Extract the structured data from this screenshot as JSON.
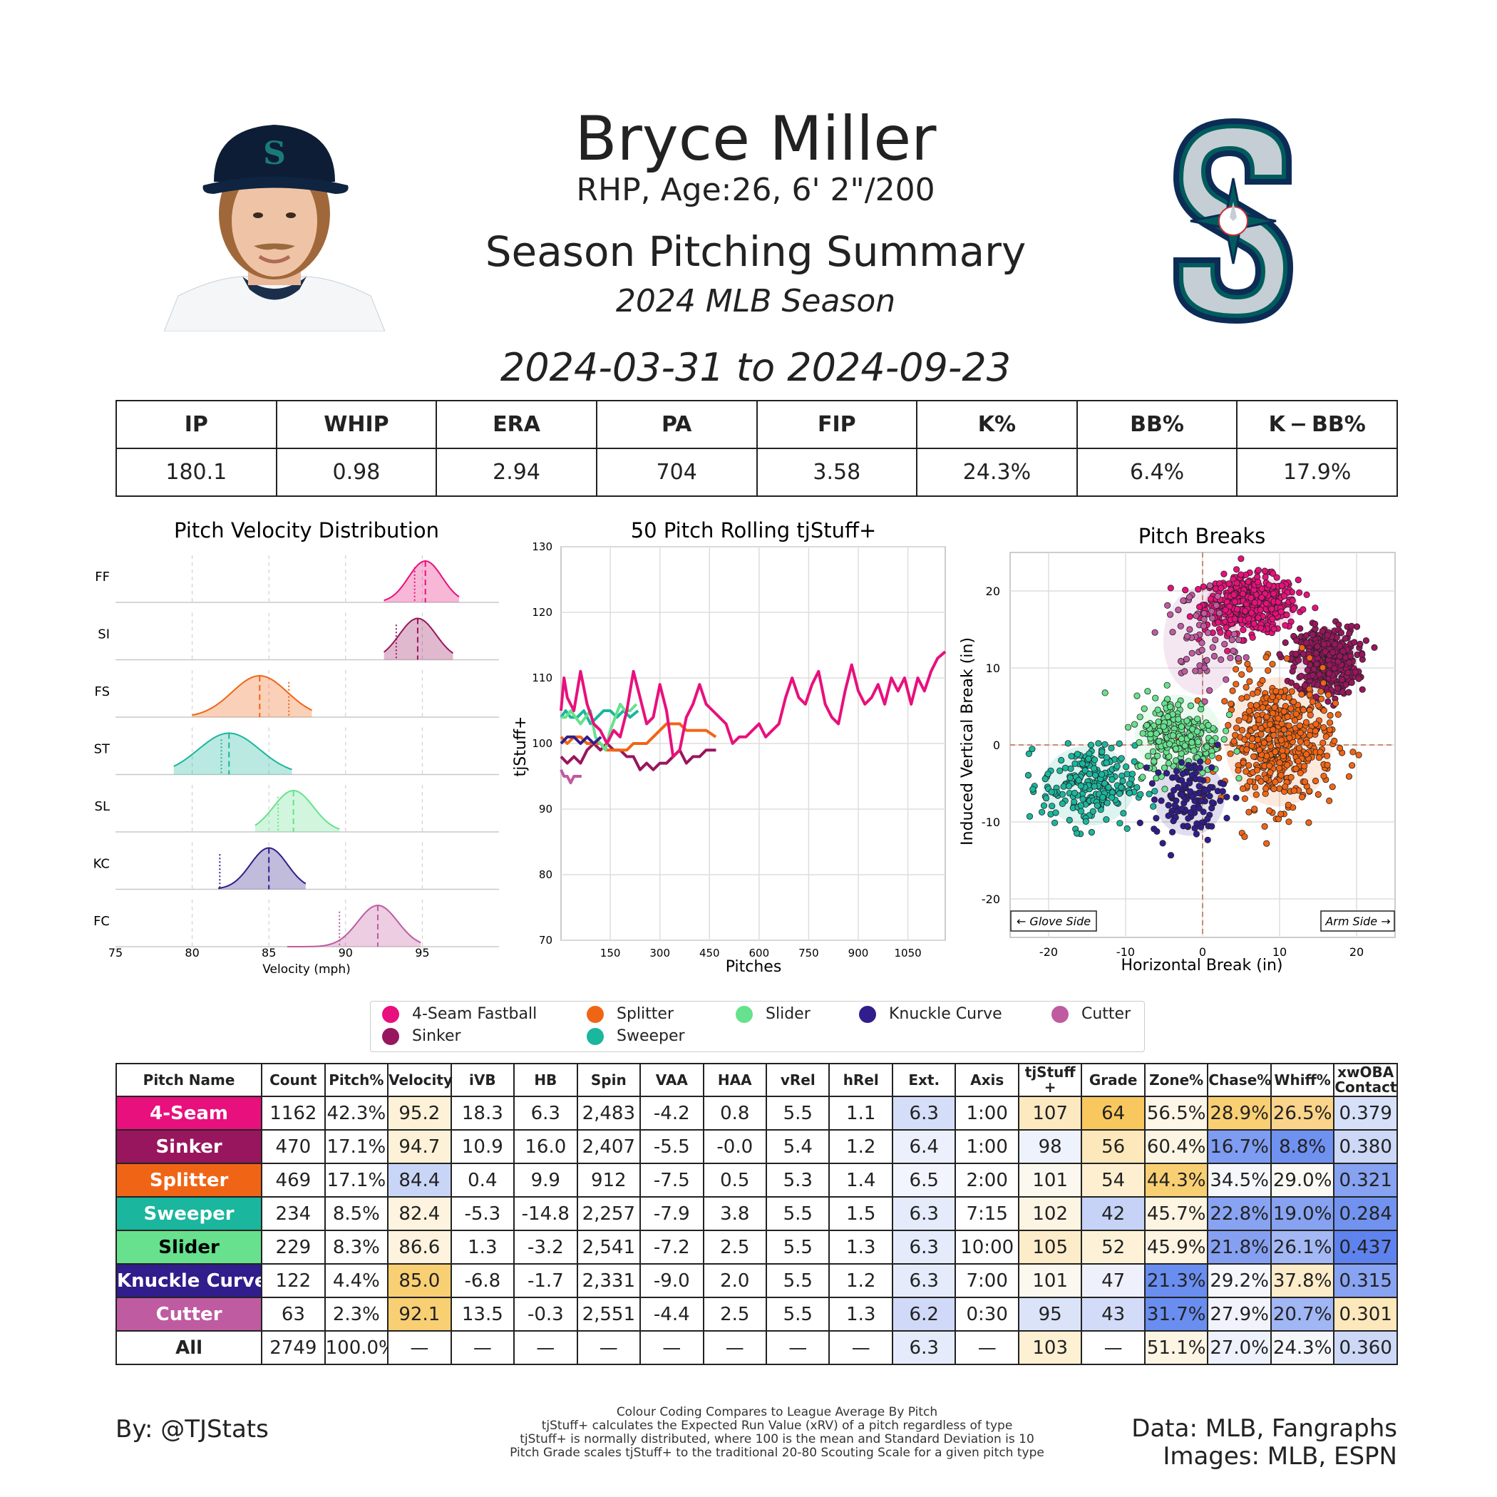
{
  "header": {
    "name": "Bryce Miller",
    "bio": "RHP, Age:26, 6' 2\"/200",
    "subtitle": "Season Pitching Summary",
    "season": "2024 MLB Season",
    "date_range": "2024-03-31 to 2024-09-23"
  },
  "summary": {
    "headers": [
      "IP",
      "WHIP",
      "ERA",
      "PA",
      "FIP",
      "K%",
      "BB%",
      "K − BB%"
    ],
    "values": [
      "180.1",
      "0.98",
      "2.94",
      "704",
      "3.58",
      "24.3%",
      "6.4%",
      "17.9%"
    ]
  },
  "colors": {
    "FF": "#e8107c",
    "SI": "#98165d",
    "FS": "#f06515",
    "ST": "#1ab69d",
    "SL": "#67e18d",
    "KC": "#311d8b",
    "FC": "#bf5ba0"
  },
  "chart_data": [
    {
      "type": "area",
      "title": "Pitch Velocity Distribution",
      "xlabel": "Velocity (mph)",
      "xlim": [
        75,
        100
      ],
      "xticks": [
        75,
        80,
        85,
        90,
        95
      ],
      "series": [
        {
          "name": "FF",
          "pitch": "4-Seam Fastball",
          "mean": 95.2,
          "sd": 1.1,
          "min": 92.5,
          "max": 97.4,
          "league": 94.5
        },
        {
          "name": "SI",
          "pitch": "Sinker",
          "mean": 94.7,
          "sd": 1.2,
          "min": 92.5,
          "max": 97.0,
          "league": 93.3
        },
        {
          "name": "FS",
          "pitch": "Splitter",
          "mean": 84.4,
          "sd": 1.8,
          "min": 80.0,
          "max": 87.8,
          "league": 86.3
        },
        {
          "name": "ST",
          "pitch": "Sweeper",
          "mean": 82.4,
          "sd": 2.0,
          "min": 78.8,
          "max": 86.5,
          "league": 81.9
        },
        {
          "name": "SL",
          "pitch": "Slider",
          "mean": 86.6,
          "sd": 1.3,
          "min": 84.1,
          "max": 89.6,
          "league": 85.6
        },
        {
          "name": "KC",
          "pitch": "Knuckle Curve",
          "mean": 85.0,
          "sd": 1.2,
          "min": 81.7,
          "max": 87.4,
          "league": 81.8
        },
        {
          "name": "FC",
          "pitch": "Cutter",
          "mean": 92.1,
          "sd": 1.3,
          "min": 86.2,
          "max": 94.9,
          "league": 89.6
        }
      ]
    },
    {
      "type": "line",
      "title": "50 Pitch Rolling tjStuff+",
      "xlabel": "Pitches",
      "ylabel": "tjStuff+",
      "xlim": [
        1,
        1163
      ],
      "ylim": [
        70,
        130
      ],
      "xticks": [
        150,
        300,
        450,
        600,
        750,
        900,
        1050
      ],
      "yticks": [
        70,
        80,
        90,
        100,
        110,
        120,
        130
      ],
      "series": [
        {
          "name": "FF",
          "x": [
            1,
            10,
            20,
            40,
            60,
            80,
            100,
            120,
            140,
            160,
            180,
            200,
            220,
            240,
            260,
            280,
            300,
            320,
            340,
            360,
            380,
            400,
            420,
            440,
            460,
            480,
            500,
            520,
            540,
            560,
            580,
            600,
            620,
            640,
            660,
            680,
            700,
            720,
            740,
            760,
            780,
            800,
            820,
            840,
            860,
            880,
            900,
            920,
            940,
            960,
            980,
            1000,
            1020,
            1040,
            1060,
            1080,
            1100,
            1120,
            1140,
            1163
          ],
          "y": [
            105,
            110,
            107,
            105,
            111,
            106,
            103,
            102,
            100,
            102,
            101,
            105,
            111,
            107,
            103,
            104,
            109,
            105,
            98,
            99,
            104,
            106,
            109,
            106,
            105,
            104,
            103,
            100,
            101,
            101,
            102,
            103,
            101,
            102,
            103,
            107,
            110,
            107,
            106,
            109,
            111,
            106,
            104,
            103,
            108,
            112,
            108,
            106,
            107,
            109,
            106,
            110,
            108,
            110,
            106,
            110,
            108,
            111,
            113,
            114
          ]
        },
        {
          "name": "SI",
          "x": [
            1,
            20,
            40,
            60,
            80,
            100,
            120,
            140,
            160,
            180,
            200,
            220,
            240,
            260,
            280,
            300,
            320,
            340,
            360,
            380,
            400,
            420,
            440,
            470
          ],
          "y": [
            98,
            97,
            98,
            97,
            99,
            100,
            99,
            100,
            99,
            99,
            98,
            98,
            96,
            97,
            96,
            97,
            97,
            98,
            99,
            97,
            98,
            98,
            99,
            99
          ]
        },
        {
          "name": "FS",
          "x": [
            1,
            20,
            40,
            60,
            80,
            100,
            120,
            140,
            160,
            180,
            200,
            220,
            240,
            260,
            280,
            300,
            320,
            340,
            360,
            380,
            400,
            420,
            440,
            469
          ],
          "y": [
            101,
            100,
            101,
            101,
            100,
            100,
            100,
            99,
            99,
            99,
            99,
            100,
            100,
            100,
            101,
            102,
            103,
            103,
            103,
            102,
            102,
            102,
            102,
            101
          ]
        },
        {
          "name": "ST",
          "x": [
            1,
            15,
            30,
            50,
            70,
            90,
            110,
            130,
            150,
            170,
            190,
            210,
            234
          ],
          "y": [
            104,
            105,
            104,
            104,
            105,
            103,
            104,
            105,
            105,
            104,
            105,
            104,
            105
          ]
        },
        {
          "name": "SL",
          "x": [
            1,
            15,
            30,
            45,
            60,
            75,
            90,
            105,
            120,
            135,
            150,
            165,
            180,
            195,
            210,
            229
          ],
          "y": [
            104,
            104,
            105,
            104,
            103,
            104,
            105,
            101,
            100,
            99,
            102,
            104,
            106,
            105,
            105,
            106
          ]
        },
        {
          "name": "KC",
          "x": [
            1,
            20,
            40,
            60,
            80,
            100,
            122
          ],
          "y": [
            100,
            101,
            101,
            100,
            101,
            100,
            101
          ]
        },
        {
          "name": "FC",
          "x": [
            1,
            10,
            20,
            30,
            40,
            50,
            63
          ],
          "y": [
            96,
            95,
            95,
            94,
            95,
            95,
            95
          ]
        }
      ]
    },
    {
      "type": "scatter",
      "title": "Pitch Breaks",
      "xlabel": "Horizontal Break (in)",
      "ylabel": "Induced Vertical Break (in)",
      "xlim": [
        -25,
        25
      ],
      "ylim": [
        -25,
        25
      ],
      "xticks": [
        -20,
        -10,
        0,
        10,
        20
      ],
      "yticks": [
        -20,
        -10,
        0,
        10,
        20
      ],
      "glove_side_label": "← Glove Side",
      "arm_side_label": "Arm Side →",
      "series": [
        {
          "name": "FF",
          "hb_mean": 6.3,
          "ivb_mean": 18.3,
          "hb_sd": 3.0,
          "ivb_sd": 1.8,
          "n": 1162
        },
        {
          "name": "SI",
          "hb_mean": 16.0,
          "ivb_mean": 10.9,
          "hb_sd": 2.0,
          "ivb_sd": 2.2,
          "n": 470
        },
        {
          "name": "FS",
          "hb_mean": 9.9,
          "ivb_mean": 0.4,
          "hb_sd": 3.5,
          "ivb_sd": 4.2,
          "n": 469
        },
        {
          "name": "ST",
          "hb_mean": -14.8,
          "ivb_mean": -5.3,
          "hb_sd": 3.0,
          "ivb_sd": 2.6,
          "n": 234
        },
        {
          "name": "SL",
          "hb_mean": -3.2,
          "ivb_mean": 1.3,
          "hb_sd": 2.8,
          "ivb_sd": 2.6,
          "n": 229
        },
        {
          "name": "KC",
          "hb_mean": -1.7,
          "ivb_mean": -6.8,
          "hb_sd": 2.3,
          "ivb_sd": 2.5,
          "n": 122
        },
        {
          "name": "FC",
          "hb_mean": -0.3,
          "ivb_mean": 13.5,
          "hb_sd": 2.4,
          "ivb_sd": 3.5,
          "n": 63
        }
      ]
    }
  ],
  "legend": [
    {
      "code": "FF",
      "label": "4-Seam Fastball"
    },
    {
      "code": "SI",
      "label": "Sinker"
    },
    {
      "code": "FS",
      "label": "Splitter"
    },
    {
      "code": "ST",
      "label": "Sweeper"
    },
    {
      "code": "SL",
      "label": "Slider"
    },
    {
      "code": "KC",
      "label": "Knuckle Curve"
    },
    {
      "code": "FC",
      "label": "Cutter"
    }
  ],
  "pitch_table": {
    "headers": [
      "Pitch Name",
      "Count",
      "Pitch%",
      "Velocity",
      "iVB",
      "HB",
      "Spin",
      "VAA",
      "HAA",
      "vRel",
      "hRel",
      "Ext.",
      "Axis",
      "tjStuff +",
      "Grade",
      "Zone%",
      "Chase%",
      "Whiff%",
      "xwOBA Contact"
    ],
    "rows": [
      {
        "name": "4-Seam",
        "code": "FF",
        "cells": [
          "1162",
          "42.3%",
          "95.2",
          "18.3",
          "6.3",
          "2,483",
          "-4.2",
          "0.8",
          "5.5",
          "1.1",
          "6.3",
          "1:00",
          "107",
          "64",
          "56.5%",
          "28.9%",
          "26.5%",
          "0.379"
        ]
      },
      {
        "name": "Sinker",
        "code": "SI",
        "cells": [
          "470",
          "17.1%",
          "94.7",
          "10.9",
          "16.0",
          "2,407",
          "-5.5",
          "-0.0",
          "5.4",
          "1.2",
          "6.4",
          "1:00",
          "98",
          "56",
          "60.4%",
          "16.7%",
          "8.8%",
          "0.380"
        ]
      },
      {
        "name": "Splitter",
        "code": "FS",
        "cells": [
          "469",
          "17.1%",
          "84.4",
          "0.4",
          "9.9",
          "912",
          "-7.5",
          "0.5",
          "5.3",
          "1.4",
          "6.5",
          "2:00",
          "101",
          "54",
          "44.3%",
          "34.5%",
          "29.0%",
          "0.321"
        ]
      },
      {
        "name": "Sweeper",
        "code": "ST",
        "cells": [
          "234",
          "8.5%",
          "82.4",
          "-5.3",
          "-14.8",
          "2,257",
          "-7.9",
          "3.8",
          "5.5",
          "1.5",
          "6.3",
          "7:15",
          "102",
          "42",
          "45.7%",
          "22.8%",
          "19.0%",
          "0.284"
        ]
      },
      {
        "name": "Slider",
        "code": "SL",
        "cells": [
          "229",
          "8.3%",
          "86.6",
          "1.3",
          "-3.2",
          "2,541",
          "-7.2",
          "2.5",
          "5.5",
          "1.3",
          "6.3",
          "10:00",
          "105",
          "52",
          "45.9%",
          "21.8%",
          "26.1%",
          "0.437"
        ]
      },
      {
        "name": "Knuckle Curve",
        "code": "KC",
        "cells": [
          "122",
          "4.4%",
          "85.0",
          "-6.8",
          "-1.7",
          "2,331",
          "-9.0",
          "2.0",
          "5.5",
          "1.2",
          "6.3",
          "7:00",
          "101",
          "47",
          "21.3%",
          "29.2%",
          "37.8%",
          "0.315"
        ]
      },
      {
        "name": "Cutter",
        "code": "FC",
        "cells": [
          "63",
          "2.3%",
          "92.1",
          "13.5",
          "-0.3",
          "2,551",
          "-4.4",
          "2.5",
          "5.5",
          "1.3",
          "6.2",
          "0:30",
          "95",
          "43",
          "31.7%",
          "27.9%",
          "20.7%",
          "0.301"
        ]
      },
      {
        "name": "All",
        "code": "",
        "cells": [
          "2749",
          "100.0%",
          "—",
          "—",
          "—",
          "—",
          "—",
          "—",
          "—",
          "—",
          "6.3",
          "—",
          "103",
          "—",
          "51.1%",
          "27.0%",
          "24.3%",
          "0.360"
        ]
      }
    ],
    "cell_colors": [
      [
        "",
        "",
        "#fdf2d7",
        "",
        "",
        "",
        "",
        "",
        "",
        "",
        "#d5def8",
        "",
        "#fde9c0",
        "#f8c75e",
        "#fdf5e5",
        "#f9cf74",
        "#fad48a",
        "#d7e0f9"
      ],
      [
        "",
        "",
        "#fdf2d7",
        "",
        "",
        "",
        "",
        "",
        "",
        "",
        "#ecf0fc",
        "",
        "#eef2fd",
        "#fde8bb",
        "#fdf5e3",
        "#7e9cf1",
        "#6f91f0",
        "#cdd8f7"
      ],
      [
        "",
        "",
        "#c9d5f7",
        "",
        "",
        "",
        "",
        "",
        "",
        "",
        "#f2f5fd",
        "",
        "#fdf8ef",
        "#fdefcf",
        "#f9cf74",
        "#f6f7fb",
        "#fbf9f3",
        "#86a2f1"
      ],
      [
        "",
        "",
        "#fdf3de",
        "",
        "",
        "",
        "",
        "",
        "",
        "",
        "#e5ebfb",
        "",
        "#fdf5e4",
        "#c6d3f7",
        "#fdf4e2",
        "#88a3f1",
        "#86a2f1",
        "#7193ef"
      ],
      [
        "",
        "",
        "#fdf3de",
        "",
        "",
        "",
        "",
        "",
        "",
        "",
        "#e5ebfb",
        "",
        "#fdecc9",
        "#fdf2d8",
        "#fdf4e2",
        "#859ff1",
        "#a3b8f4",
        "#5e82ee"
      ],
      [
        "",
        "",
        "#f9cf74",
        "",
        "",
        "",
        "",
        "",
        "",
        "",
        "#e5ebfb",
        "",
        "#fdf8ef",
        "#eef1fb",
        "#6a8ef0",
        "#f6f7fa",
        "#fdecc9",
        "#88a3f1"
      ],
      [
        "",
        "",
        "#f9cf74",
        "",
        "",
        "",
        "",
        "",
        "",
        "",
        "#d0daf8",
        "",
        "#dbe3f9",
        "#d2dcf8",
        "#6a8ef0",
        "#f0f3fc",
        "#a1b6f4",
        "#fde8bb"
      ],
      [
        "",
        "",
        "",
        "",
        "",
        "",
        "",
        "",
        "",
        "",
        "#e5ebfb",
        "",
        "#fdf0d3",
        "",
        "#fdf5e4",
        "#eef2fd",
        "#f6f7fb",
        "#cdd8f7"
      ]
    ]
  },
  "footer": {
    "byline": "By: @TJStats",
    "notes": [
      "Colour Coding Compares to League Average By Pitch",
      "tjStuff+ calculates the Expected Run Value (xRV) of a pitch regardless of type",
      "tjStuff+ is normally distributed, where 100 is the mean and Standard Deviation is 10",
      "Pitch Grade scales tjStuff+ to the traditional 20-80 Scouting Scale for a given pitch type"
    ],
    "credits": [
      "Data: MLB, Fangraphs",
      "Images: MLB, ESPN"
    ]
  }
}
